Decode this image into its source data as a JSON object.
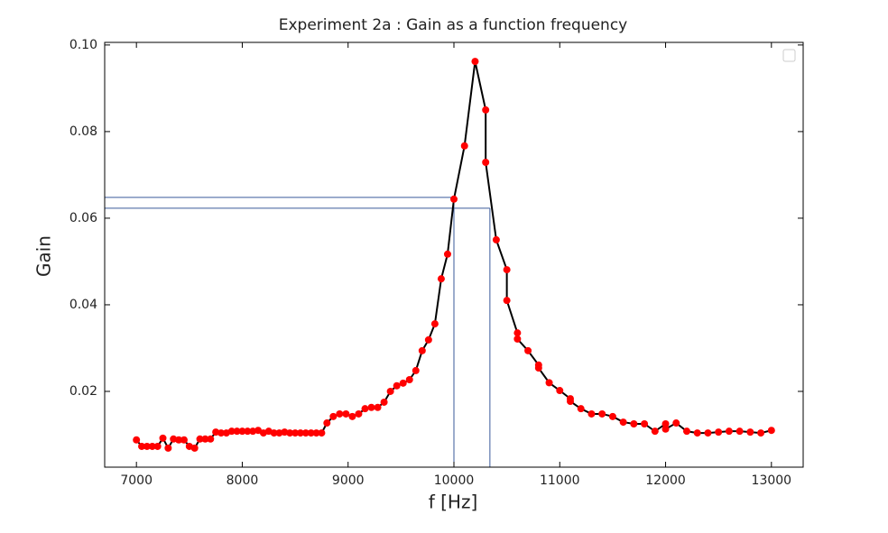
{
  "chart_data": {
    "type": "line",
    "title": "Experiment 2a : Gain as a function frequency",
    "xlabel": "f [Hz]",
    "ylabel": "Gain",
    "x": [
      7000,
      7050,
      7100,
      7150,
      7200,
      7250,
      7300,
      7350,
      7400,
      7450,
      7500,
      7550,
      7600,
      7650,
      7700,
      7750,
      7800,
      7850,
      7900,
      7950,
      8000,
      8050,
      8100,
      8150,
      8200,
      8250,
      8300,
      8350,
      8400,
      8450,
      8500,
      8550,
      8600,
      8650,
      8700,
      8750,
      8800,
      8860,
      8920,
      8980,
      9040,
      9100,
      9160,
      9220,
      9280,
      9340,
      9400,
      9460,
      9520,
      9580,
      9640,
      9700,
      9760,
      9820,
      9880,
      9940,
      10000,
      10100,
      10200,
      10300,
      10300,
      10400,
      10500,
      10500,
      10600,
      10600,
      10700,
      10800,
      10800,
      10900,
      11000,
      11100,
      11100,
      11200,
      11300,
      11400,
      11500,
      11600,
      11700,
      11800,
      11900,
      12000,
      12000,
      12100,
      12200,
      12300,
      12400,
      12500,
      12600,
      12700,
      12800,
      12900,
      13000
    ],
    "values": [
      0.0088,
      0.0073,
      0.0073,
      0.0073,
      0.0073,
      0.0092,
      0.0069,
      0.009,
      0.0088,
      0.0088,
      0.0073,
      0.0069,
      0.009,
      0.009,
      0.009,
      0.0106,
      0.0104,
      0.0104,
      0.0108,
      0.0108,
      0.0108,
      0.0108,
      0.0108,
      0.011,
      0.0104,
      0.0108,
      0.0104,
      0.0104,
      0.0106,
      0.0104,
      0.0104,
      0.0104,
      0.0104,
      0.0104,
      0.0104,
      0.0104,
      0.0127,
      0.0142,
      0.0148,
      0.0148,
      0.0142,
      0.0148,
      0.016,
      0.0163,
      0.0163,
      0.0175,
      0.02,
      0.0213,
      0.0219,
      0.0227,
      0.0248,
      0.0294,
      0.0319,
      0.0356,
      0.046,
      0.0517,
      0.0644,
      0.0767,
      0.0962,
      0.085,
      0.0729,
      0.055,
      0.0481,
      0.041,
      0.0335,
      0.0321,
      0.0294,
      0.0261,
      0.0254,
      0.022,
      0.0202,
      0.0183,
      0.0177,
      0.016,
      0.0148,
      0.0148,
      0.0142,
      0.0129,
      0.0125,
      0.0125,
      0.0108,
      0.0125,
      0.0113,
      0.0127,
      0.0108,
      0.0104,
      0.0104,
      0.0106,
      0.0108,
      0.0108,
      0.0106,
      0.0104,
      0.011
    ],
    "color": "#000000",
    "marker_color": "#ff0000",
    "reference_lines": [
      {
        "x": 10000,
        "y": 0.0648
      },
      {
        "x": 10340,
        "y": 0.0623
      }
    ],
    "reference_color": "#3a5a9a",
    "xlim": [
      6700,
      13300
    ],
    "ylim": [
      0.0025,
      0.1006
    ],
    "xticks": [
      7000,
      8000,
      9000,
      10000,
      11000,
      12000,
      13000
    ],
    "yticks": [
      0.02,
      0.04,
      0.06,
      0.08,
      {
        "value": 0.1,
        "label": "0.10"
      }
    ],
    "legend": "upper right"
  }
}
